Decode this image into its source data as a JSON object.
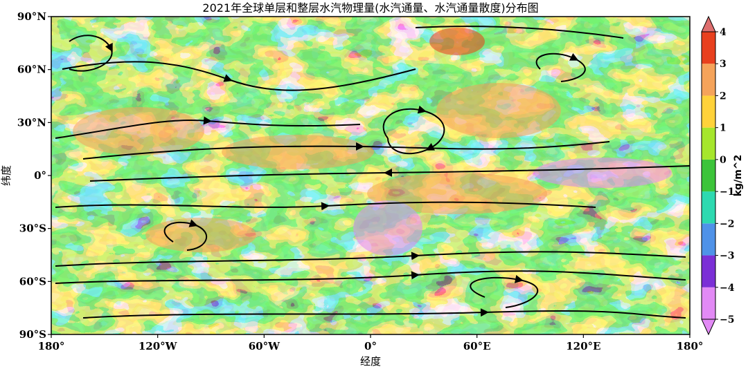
{
  "chart_data": {
    "type": "heatmap",
    "title": "2021年全球单层和整层水汽物理量(水汽通量、水汽通量散度)分布图",
    "xlabel": "经度",
    "ylabel": "纬度",
    "x_ticks": [
      "180°",
      "120°W",
      "60°W",
      "0°",
      "60°E",
      "120°E",
      "180°"
    ],
    "x_tick_values": [
      -180,
      -120,
      -60,
      0,
      60,
      120,
      180
    ],
    "y_ticks": [
      "90°N",
      "60°N",
      "30°N",
      "0°",
      "30°S",
      "60°S",
      "90°S"
    ],
    "y_tick_values": [
      90,
      60,
      30,
      0,
      -30,
      -60,
      -90
    ],
    "xlim": [
      -180,
      180
    ],
    "ylim": [
      -90,
      90
    ],
    "colorbar": {
      "label": "kg/m^2",
      "ticks": [
        "4",
        "3",
        "2",
        "1",
        "0",
        "−1",
        "−2",
        "−3",
        "−4",
        "−5"
      ],
      "tick_values": [
        4,
        3,
        2,
        1,
        0,
        -1,
        -2,
        -3,
        -4,
        -5
      ],
      "levels": [
        -5,
        -4,
        -3,
        -2,
        -1,
        0,
        1,
        2,
        3,
        4
      ],
      "colors": [
        "#e28af5",
        "#7b2fd6",
        "#4f92e8",
        "#2dd9b0",
        "#3cc43a",
        "#a6e62c",
        "#ffd23a",
        "#f5a35a",
        "#e8401e",
        "#de6e6e"
      ],
      "extend": "both"
    },
    "notes_visible": "streamlines of water vapour flux over filled contours of flux divergence"
  }
}
